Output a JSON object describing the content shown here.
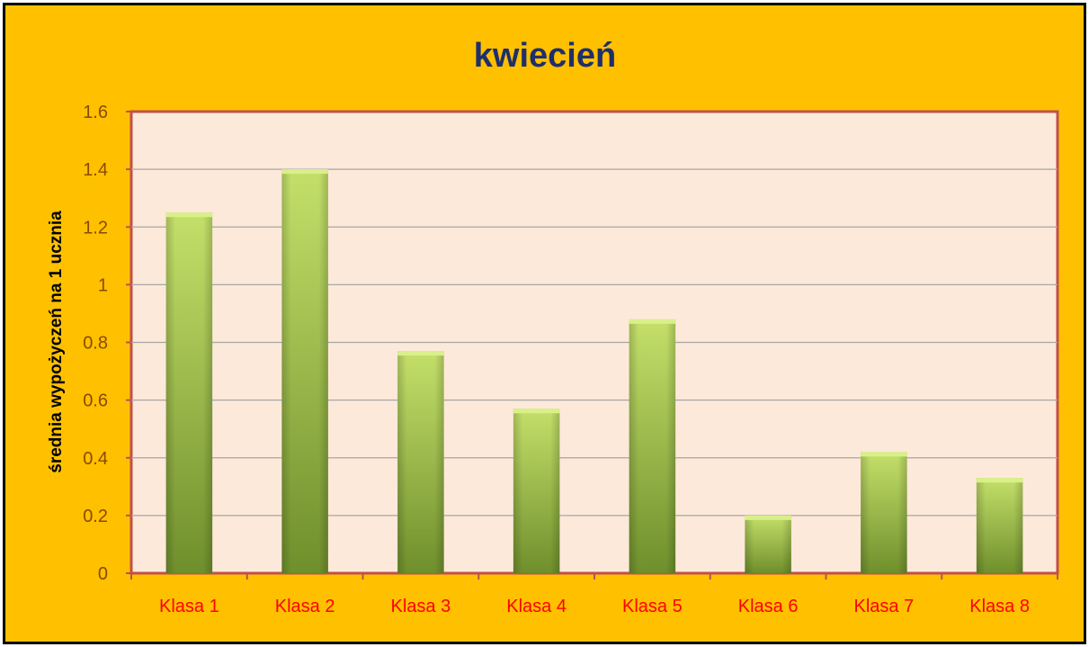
{
  "chart_data": {
    "type": "bar",
    "title": "kwiecień",
    "xlabel": "",
    "ylabel": "średnia wypożyczeń na 1 ucznia",
    "categories": [
      "Klasa 1",
      "Klasa 2",
      "Klasa 3",
      "Klasa 4",
      "Klasa 5",
      "Klasa 6",
      "Klasa 7",
      "Klasa 8"
    ],
    "values": [
      1.25,
      1.4,
      0.77,
      0.57,
      0.88,
      0.2,
      0.42,
      0.33
    ],
    "ylim": [
      0,
      1.6
    ],
    "yticks": [
      "0",
      "0.2",
      "0.4",
      "0.6",
      "0.8",
      "1",
      "1.2",
      "1.4",
      "1.6"
    ],
    "grid": true,
    "legend": "none",
    "colors": {
      "background": "#ffc000",
      "plot_area": "#fde9d9",
      "plot_border": "#c0504d",
      "bar_light": "#c4e06a",
      "bar_dark": "#6f8f2c",
      "title": "#1f2f6b",
      "category_labels": "#ff0000",
      "tick_labels": "#8a4a00"
    }
  }
}
